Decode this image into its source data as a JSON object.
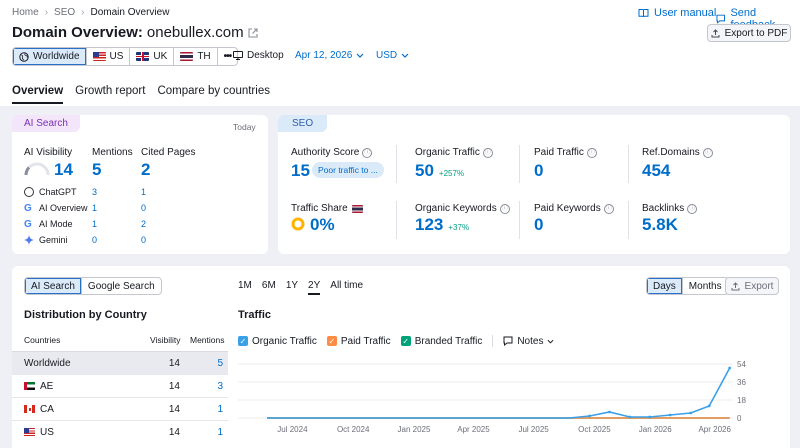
{
  "breadcrumb": [
    "Home",
    "SEO",
    "Domain Overview"
  ],
  "title": {
    "prefix": "Domain Overview:",
    "domain": "onebullex.com"
  },
  "header_links": {
    "manual": "User manual",
    "feedback": "Send feedback",
    "export_pdf": "Export to PDF"
  },
  "regions": [
    {
      "label": "Worldwide",
      "selected": true
    },
    {
      "label": "US"
    },
    {
      "label": "UK"
    },
    {
      "label": "TH"
    }
  ],
  "more": "•••",
  "device": "Desktop",
  "date": "Apr 12, 2026",
  "currency": "USD",
  "tabs": [
    "Overview",
    "Growth report",
    "Compare by countries"
  ],
  "ai": {
    "pill": "AI Search",
    "period": "Today",
    "visibility_label": "AI Visibility",
    "visibility": "14",
    "mentions_label": "Mentions",
    "mentions": "5",
    "cited_label": "Cited Pages",
    "cited": "2",
    "rows": [
      {
        "name": "ChatGPT",
        "mentions": "3",
        "cited": "1"
      },
      {
        "name": "AI Overview",
        "mentions": "1",
        "cited": "0"
      },
      {
        "name": "AI Mode",
        "mentions": "1",
        "cited": "2"
      },
      {
        "name": "Gemini",
        "mentions": "0",
        "cited": "0"
      }
    ]
  },
  "seo": {
    "pill": "SEO",
    "authority_label": "Authority Score",
    "authority": "15",
    "authority_badge": "Poor traffic to ...",
    "organic_label": "Organic Traffic",
    "organic": "50",
    "organic_delta": "+257%",
    "paid_label": "Paid Traffic",
    "paid": "0",
    "refdomains_label": "Ref.Domains",
    "refdomains": "454",
    "share_label": "Traffic Share",
    "share": "0%",
    "keywords_label": "Organic Keywords",
    "keywords": "123",
    "keywords_delta": "+37%",
    "paid_kw_label": "Paid Keywords",
    "paid_kw": "0",
    "backlinks_label": "Backlinks",
    "backlinks": "5.8K"
  },
  "bottom": {
    "toggle": [
      "AI Search",
      "Google Search"
    ],
    "dist_title": "Distribution by Country",
    "col_countries": "Countries",
    "col_visibility": "Visibility",
    "col_mentions": "Mentions",
    "rows": [
      {
        "country": "Worldwide",
        "visibility": "14",
        "mentions": "5"
      },
      {
        "country": "AE",
        "visibility": "14",
        "mentions": "3"
      },
      {
        "country": "CA",
        "visibility": "14",
        "mentions": "1"
      },
      {
        "country": "US",
        "visibility": "14",
        "mentions": "1"
      }
    ],
    "ranges": [
      "1M",
      "6M",
      "1Y",
      "2Y",
      "All time"
    ],
    "selected_range": "2Y",
    "traffic_title": "Traffic",
    "days": "Days",
    "months": "Months",
    "export": "Export",
    "legend": [
      "Organic Traffic",
      "Paid Traffic",
      "Branded Traffic"
    ],
    "notes": "Notes"
  },
  "chart_data": {
    "type": "line",
    "title": "Traffic",
    "x_tick_labels": [
      "Jul 2024",
      "Oct 2024",
      "Jan 2025",
      "Apr 2025",
      "Jul 2025",
      "Oct 2025",
      "Jan 2026",
      "Apr 2026"
    ],
    "y_tick_labels": [
      "54",
      "36",
      "18",
      "0"
    ],
    "ylim": [
      0,
      54
    ],
    "series": [
      {
        "name": "Organic Traffic",
        "color": "#3aa0e8",
        "x": [
          "2024-05",
          "2024-08",
          "2024-11",
          "2025-02",
          "2025-05",
          "2025-08",
          "2025-09",
          "2025-10",
          "2025-11",
          "2025-12",
          "2026-01",
          "2026-02",
          "2026-03",
          "2026-04"
        ],
        "values": [
          0,
          0,
          0,
          0,
          0,
          0,
          2,
          6,
          1,
          1,
          3,
          5,
          12,
          50
        ]
      },
      {
        "name": "Paid Traffic",
        "color": "#ff8c43",
        "x": [
          "2024-05",
          "2026-04"
        ],
        "values": [
          0,
          0
        ]
      },
      {
        "name": "Branded Traffic",
        "color": "#00a27a",
        "x": [
          "2024-05",
          "2026-04"
        ],
        "values": [
          0,
          0
        ]
      }
    ]
  }
}
